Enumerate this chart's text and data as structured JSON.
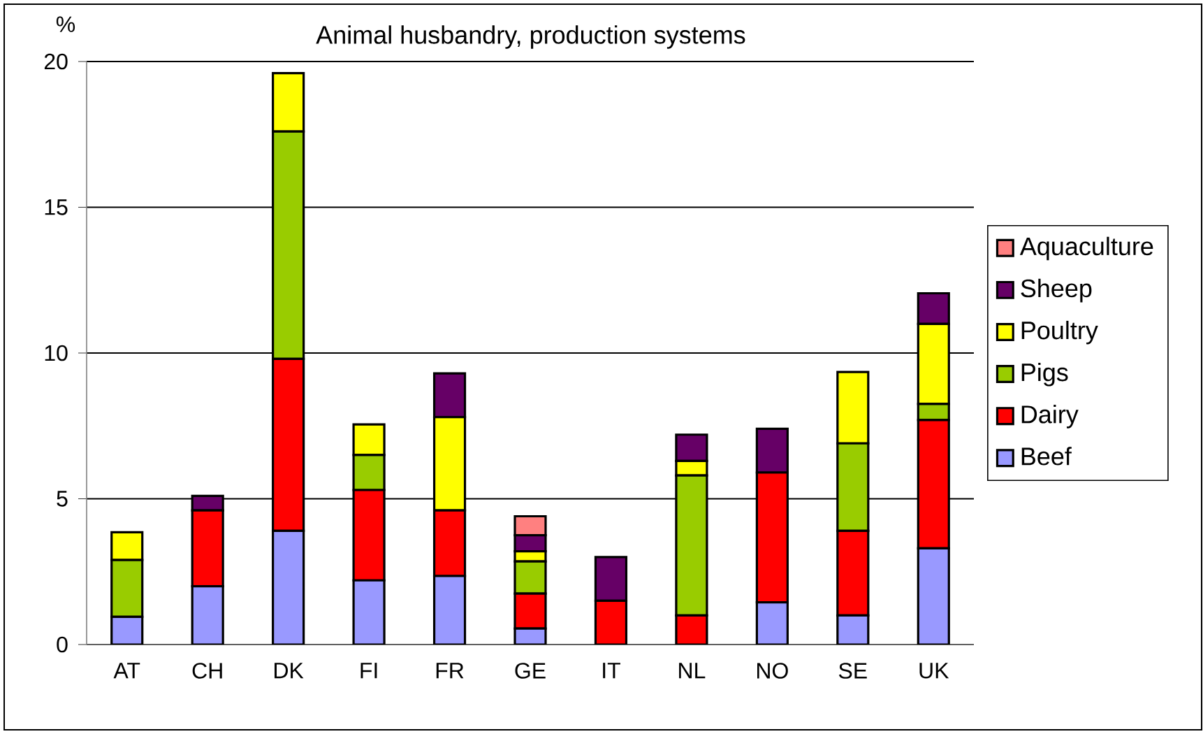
{
  "chart_data": {
    "type": "bar",
    "stacked": true,
    "title": "Animal husbandry, production systems",
    "ylabel": "%",
    "categories": [
      "AT",
      "CH",
      "DK",
      "FI",
      "FR",
      "GE",
      "IT",
      "NL",
      "NO",
      "SE",
      "UK"
    ],
    "series": [
      {
        "name": "Beef",
        "color": "#9999ff",
        "values": [
          0.95,
          2.0,
          3.9,
          2.2,
          2.35,
          0.55,
          0,
          0,
          1.45,
          1.0,
          3.3
        ]
      },
      {
        "name": "Dairy",
        "color": "#ff0000",
        "values": [
          0,
          2.6,
          5.9,
          3.1,
          2.25,
          1.2,
          1.5,
          1.0,
          4.45,
          2.9,
          4.4
        ]
      },
      {
        "name": "Pigs",
        "color": "#99cc00",
        "values": [
          1.95,
          0,
          7.8,
          1.2,
          0,
          1.1,
          0,
          4.8,
          0,
          3.0,
          0.55
        ]
      },
      {
        "name": "Poultry",
        "color": "#ffff00",
        "values": [
          0.95,
          0,
          2.0,
          1.05,
          3.2,
          0.35,
          0,
          0.5,
          0,
          2.45,
          2.75
        ]
      },
      {
        "name": "Sheep",
        "color": "#660066",
        "values": [
          0,
          0.5,
          0,
          0,
          1.5,
          0.55,
          1.5,
          0.9,
          1.5,
          0,
          1.05
        ]
      },
      {
        "name": "Aquaculture",
        "color": "#ff8080",
        "values": [
          0,
          0,
          0,
          0,
          0,
          0.65,
          0,
          0,
          0,
          0,
          0
        ]
      }
    ],
    "ylim": [
      0,
      20
    ],
    "yticks": [
      0,
      5,
      10,
      15,
      20
    ],
    "grid": "y",
    "legend": "right"
  }
}
